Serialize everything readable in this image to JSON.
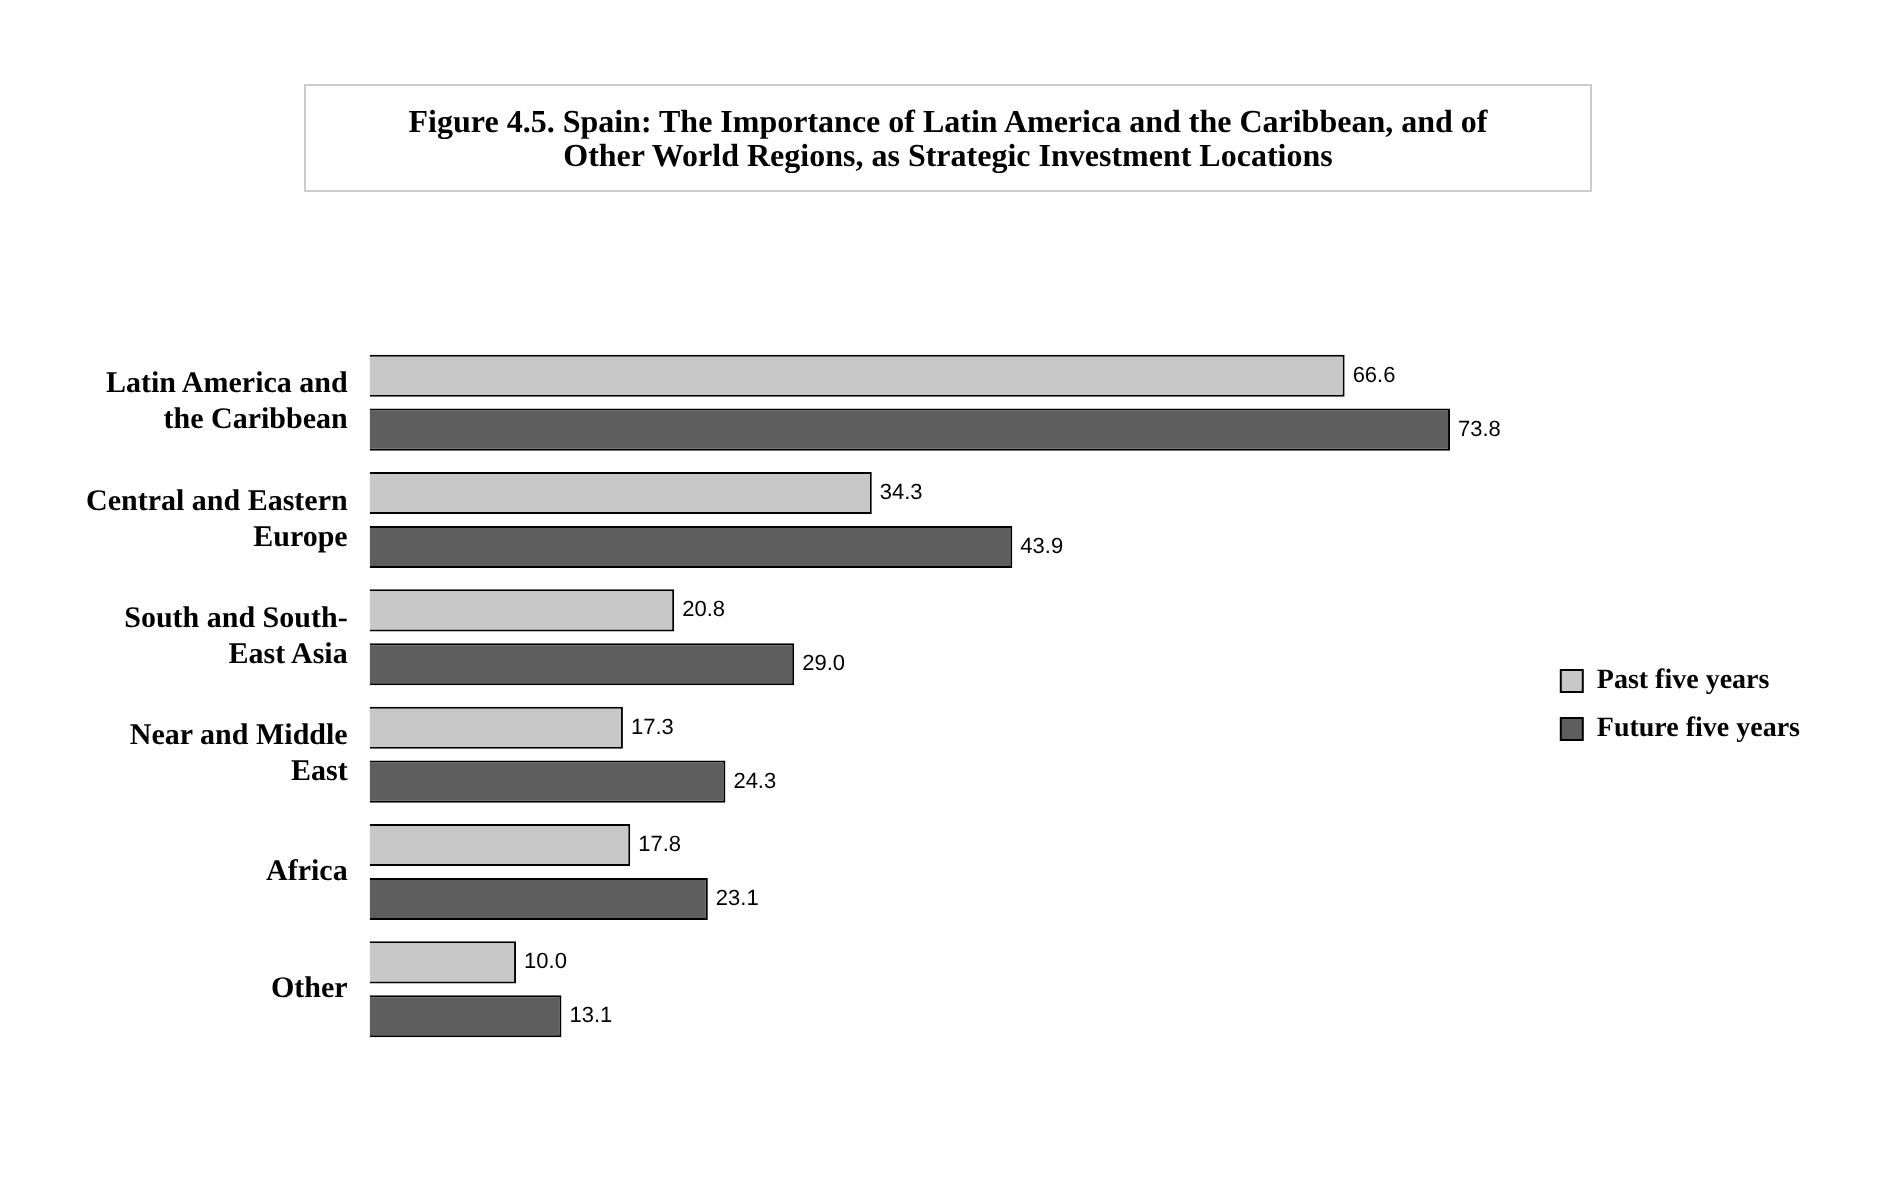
{
  "chart_data": {
    "type": "bar",
    "orientation": "horizontal",
    "title": "Figure 4.5. Spain: The Importance of Latin America and the Caribbean, and of Other World Regions, as Strategic Investment Locations",
    "categories": [
      "Latin America and the Caribbean",
      "Central and Eastern Europe",
      "South and South-East Asia",
      "Near and Middle East",
      "Africa",
      "Other"
    ],
    "series": [
      {
        "name": "Past five years",
        "color": "#c8c8c8",
        "values": [
          66.6,
          34.3,
          20.8,
          17.3,
          17.8,
          10.0
        ],
        "value_labels": [
          "66.6",
          "34.3",
          "20.8",
          "17.3",
          "17.8",
          "10.0"
        ]
      },
      {
        "name": "Future five years",
        "color": "#5e5e5e",
        "values": [
          73.8,
          43.9,
          29.0,
          24.3,
          23.1,
          13.1
        ],
        "value_labels": [
          "73.8",
          "43.9",
          "29.0",
          "24.3",
          "23.1",
          "13.1"
        ]
      }
    ],
    "legend": "right"
  }
}
